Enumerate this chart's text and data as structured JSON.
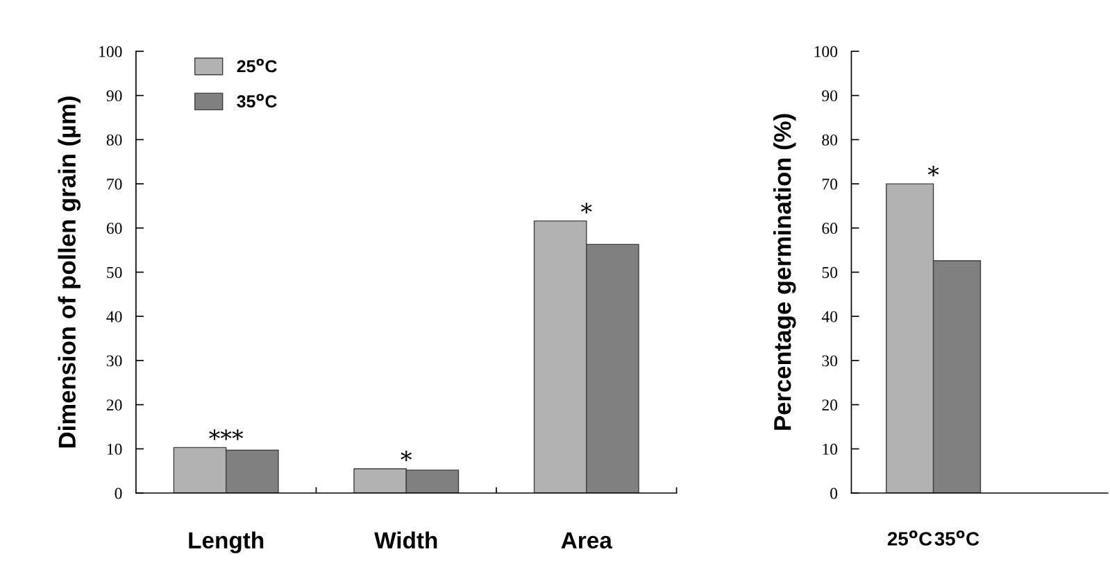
{
  "chart_data": [
    {
      "type": "bar",
      "ylabel": "Dimension of pollen grain (µm)",
      "categories": [
        "Length",
        "Width",
        "Area"
      ],
      "series": [
        {
          "name": "25$^{o}$C",
          "color": "#b2b2b2",
          "values": [
            10.3,
            5.5,
            61.6
          ]
        },
        {
          "name": "35$^{o}$C",
          "color": "#808080",
          "values": [
            9.7,
            5.2,
            56.3
          ]
        }
      ],
      "ylim": [
        0,
        100
      ],
      "yticks": [
        0,
        10,
        20,
        30,
        40,
        50,
        60,
        70,
        80,
        90,
        100
      ],
      "legend": "top left",
      "grid": false,
      "annotations": [
        "***",
        "*",
        "*"
      ]
    },
    {
      "type": "bar",
      "ylabel": "Percentage germination (%)",
      "categories": [
        "25$^{o}$C",
        "35$^{o}$C"
      ],
      "values": [
        70,
        52.6
      ],
      "colors": [
        "#b2b2b2",
        "#808080"
      ],
      "ylim": [
        0,
        100
      ],
      "yticks": [
        0,
        10,
        20,
        30,
        40,
        50,
        60,
        70,
        80,
        90,
        100
      ],
      "grid": false,
      "annotations": [
        "*"
      ]
    }
  ]
}
